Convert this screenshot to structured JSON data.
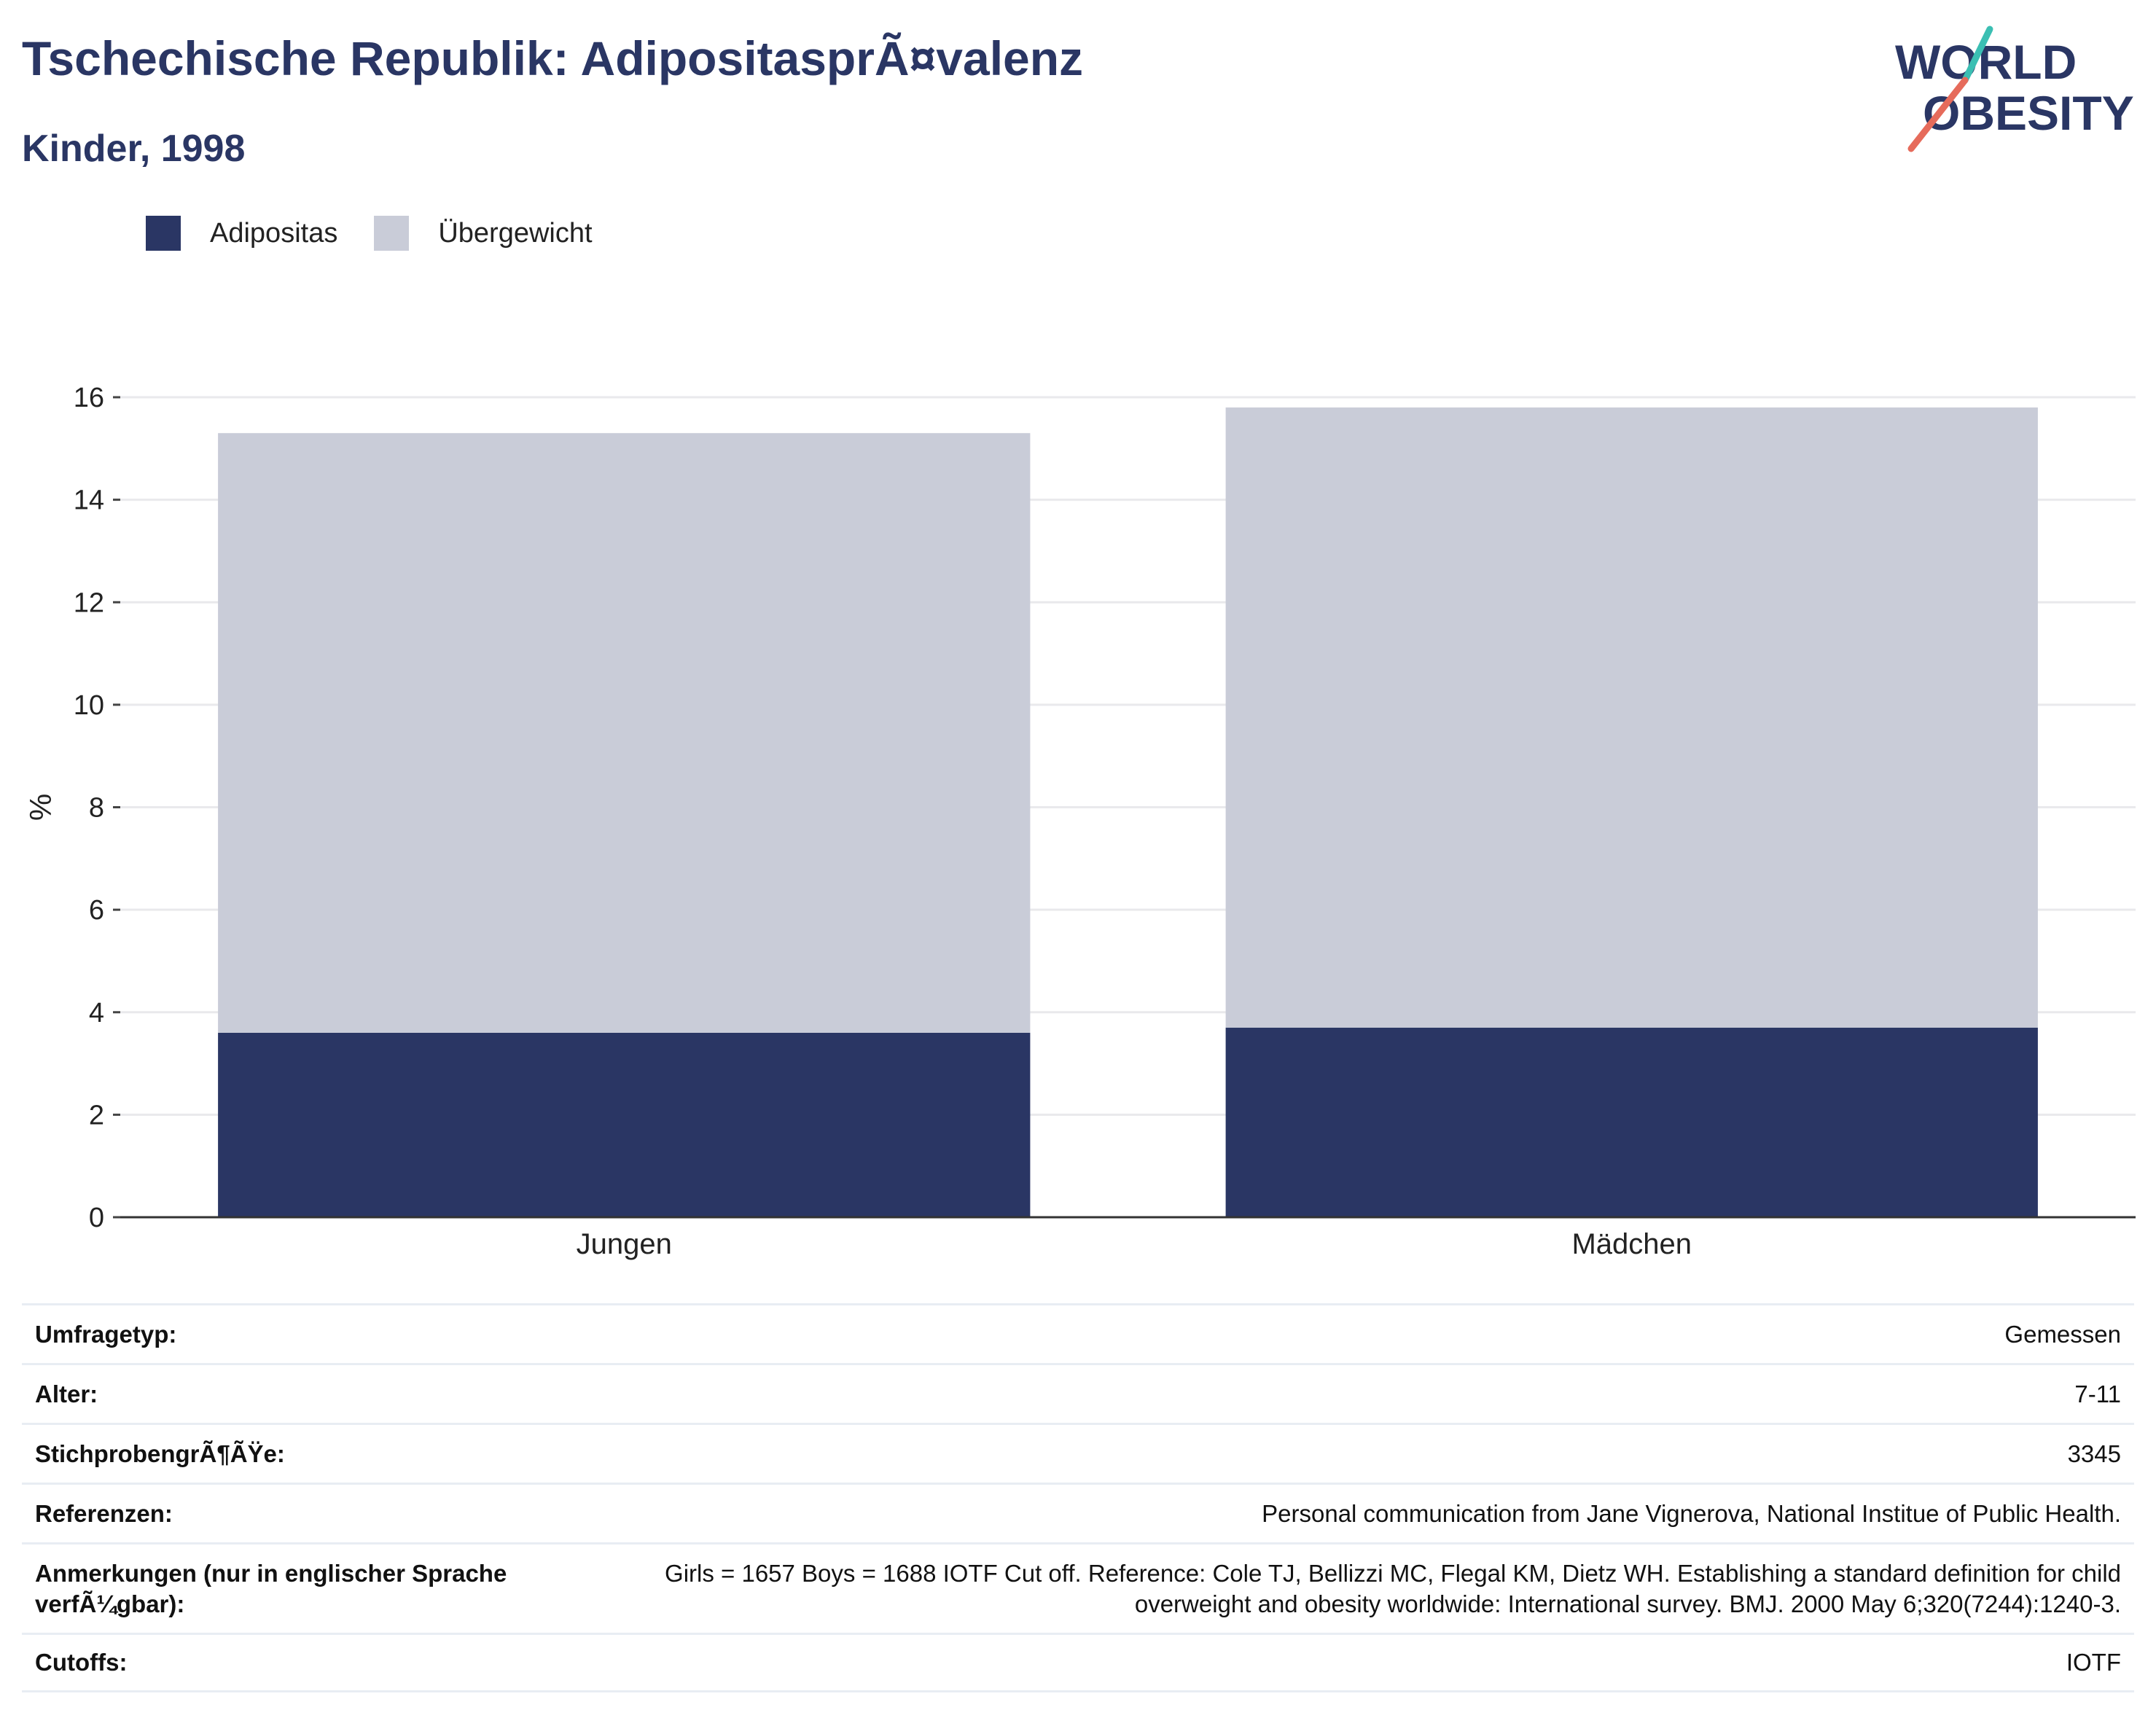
{
  "header": {
    "title": "Tschechische Republik: AdipositasprÃ¤valenz",
    "subtitle": "Kinder, 1998"
  },
  "logo": {
    "line1": "WORLD",
    "line2": "OBESITY"
  },
  "legend": [
    {
      "label": "Adipositas",
      "color": "#2a3664"
    },
    {
      "label": "Übergewicht",
      "color": "#c9ccd8"
    }
  ],
  "chart_data": {
    "type": "bar",
    "stacked": true,
    "categories": [
      "Jungen",
      "Mädchen"
    ],
    "series": [
      {
        "name": "Adipositas",
        "values": [
          3.6,
          3.7
        ],
        "color": "#2a3664"
      },
      {
        "name": "Übergewicht",
        "values": [
          11.7,
          12.1
        ],
        "color": "#c9ccd8"
      }
    ],
    "ylabel": "%",
    "ylim": [
      0,
      16
    ],
    "yticks": [
      0,
      2,
      4,
      6,
      8,
      10,
      12,
      14,
      16
    ],
    "grid": true
  },
  "meta": [
    {
      "label": "Umfragetyp:",
      "value": "Gemessen"
    },
    {
      "label": "Alter:",
      "value": "7-11"
    },
    {
      "label": "StichprobengrÃ¶ÃŸe:",
      "value": "3345"
    },
    {
      "label": "Referenzen:",
      "value": "Personal communication from Jane Vignerova, National Institue of Public Health."
    },
    {
      "label": "Anmerkungen (nur in englischer Sprache verfÃ¼gbar):",
      "value": "Girls = 1657 Boys = 1688 IOTF Cut off. Reference: Cole TJ, Bellizzi MC, Flegal KM, Dietz WH. Establishing a standard definition for child overweight and obesity worldwide: International survey. BMJ. 2000 May 6;320(7244):1240-3."
    },
    {
      "label": "Cutoffs:",
      "value": "IOTF"
    }
  ]
}
